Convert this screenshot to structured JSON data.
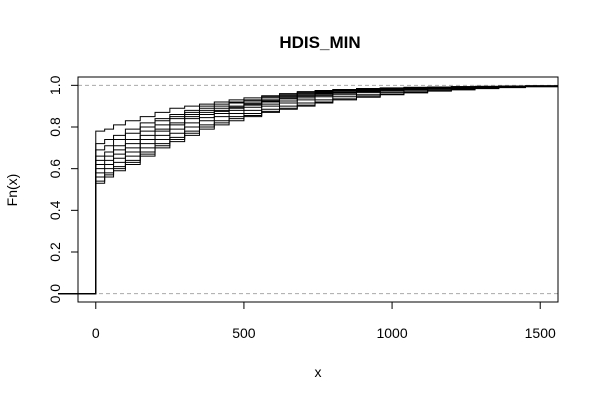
{
  "chart_data": {
    "type": "line",
    "subtype": "ecdf-step",
    "title": "HDIS_MIN",
    "xlabel": "x",
    "ylabel": "Fn(x)",
    "xlim": [
      -60,
      1560
    ],
    "ylim": [
      -0.04,
      1.04
    ],
    "xticks": [
      0,
      500,
      1000,
      1500
    ],
    "xtick_labels": [
      "0",
      "500",
      "1000",
      "1500"
    ],
    "yticks": [
      0.0,
      0.2,
      0.4,
      0.6,
      0.8,
      1.0
    ],
    "ytick_labels": [
      "0.0",
      "0.2",
      "0.4",
      "0.6",
      "0.8",
      "1.0"
    ],
    "reference_lines": [
      0,
      1
    ],
    "reference_line_style": "dashed grey",
    "grid": false,
    "legend": "none",
    "colors": {
      "line": "#000000",
      "reference": "#aaaaaa"
    },
    "series": [
      {
        "x": [
          0,
          30,
          60,
          100,
          150,
          200,
          250,
          300,
          350,
          400,
          450,
          500,
          560,
          620,
          680,
          740,
          800,
          880,
          960,
          1040,
          1120,
          1200,
          1280,
          1360,
          1450,
          1560
        ],
        "y": [
          0.78,
          0.79,
          0.81,
          0.83,
          0.85,
          0.87,
          0.89,
          0.9,
          0.91,
          0.92,
          0.93,
          0.94,
          0.95,
          0.96,
          0.97,
          0.975,
          0.98,
          0.985,
          0.988,
          0.99,
          0.992,
          0.994,
          0.995,
          0.996,
          0.998,
          0.999
        ]
      },
      {
        "x": [
          0,
          30,
          60,
          100,
          150,
          200,
          250,
          300,
          350,
          400,
          450,
          500,
          560,
          620,
          680,
          740,
          800,
          880,
          960,
          1040,
          1120,
          1200,
          1280,
          1360,
          1450,
          1560
        ],
        "y": [
          0.72,
          0.74,
          0.76,
          0.79,
          0.82,
          0.84,
          0.86,
          0.88,
          0.9,
          0.91,
          0.92,
          0.93,
          0.945,
          0.955,
          0.965,
          0.972,
          0.978,
          0.983,
          0.987,
          0.99,
          0.992,
          0.994,
          0.995,
          0.996,
          0.998,
          0.999
        ]
      },
      {
        "x": [
          0,
          30,
          60,
          100,
          150,
          200,
          250,
          300,
          350,
          400,
          450,
          500,
          560,
          620,
          680,
          740,
          800,
          880,
          960,
          1040,
          1120,
          1200,
          1280,
          1360,
          1450,
          1560
        ],
        "y": [
          0.69,
          0.71,
          0.74,
          0.77,
          0.8,
          0.83,
          0.85,
          0.87,
          0.89,
          0.9,
          0.915,
          0.925,
          0.94,
          0.95,
          0.96,
          0.968,
          0.975,
          0.98,
          0.985,
          0.988,
          0.99,
          0.992,
          0.994,
          0.995,
          0.997,
          0.998
        ]
      },
      {
        "x": [
          0,
          30,
          60,
          100,
          150,
          200,
          250,
          300,
          350,
          400,
          450,
          500,
          560,
          620,
          680,
          740,
          800,
          880,
          960,
          1040,
          1120,
          1200,
          1280,
          1360,
          1450,
          1560
        ],
        "y": [
          0.66,
          0.68,
          0.71,
          0.74,
          0.78,
          0.81,
          0.84,
          0.86,
          0.88,
          0.89,
          0.9,
          0.915,
          0.93,
          0.945,
          0.955,
          0.963,
          0.97,
          0.977,
          0.982,
          0.986,
          0.989,
          0.991,
          0.993,
          0.995,
          0.997,
          0.998
        ]
      },
      {
        "x": [
          0,
          30,
          60,
          100,
          150,
          200,
          250,
          300,
          350,
          400,
          450,
          500,
          560,
          620,
          680,
          740,
          800,
          880,
          960,
          1040,
          1120,
          1200,
          1280,
          1360,
          1450,
          1560
        ],
        "y": [
          0.64,
          0.66,
          0.69,
          0.72,
          0.76,
          0.79,
          0.82,
          0.85,
          0.87,
          0.88,
          0.895,
          0.91,
          0.925,
          0.94,
          0.95,
          0.96,
          0.967,
          0.974,
          0.98,
          0.985,
          0.988,
          0.991,
          0.993,
          0.995,
          0.997,
          0.998
        ]
      },
      {
        "x": [
          0,
          30,
          60,
          100,
          150,
          200,
          250,
          300,
          350,
          400,
          450,
          500,
          560,
          620,
          680,
          740,
          800,
          880,
          960,
          1040,
          1120,
          1200,
          1280,
          1360,
          1450,
          1560
        ],
        "y": [
          0.62,
          0.64,
          0.67,
          0.7,
          0.74,
          0.78,
          0.81,
          0.84,
          0.86,
          0.875,
          0.89,
          0.905,
          0.92,
          0.935,
          0.947,
          0.957,
          0.965,
          0.972,
          0.978,
          0.983,
          0.987,
          0.99,
          0.992,
          0.994,
          0.996,
          0.998
        ]
      },
      {
        "x": [
          0,
          30,
          60,
          100,
          150,
          200,
          250,
          300,
          350,
          400,
          450,
          500,
          560,
          620,
          680,
          740,
          800,
          880,
          960,
          1040,
          1120,
          1200,
          1280,
          1360,
          1450,
          1560
        ],
        "y": [
          0.6,
          0.62,
          0.65,
          0.68,
          0.72,
          0.76,
          0.79,
          0.82,
          0.845,
          0.865,
          0.88,
          0.895,
          0.91,
          0.925,
          0.94,
          0.952,
          0.962,
          0.97,
          0.976,
          0.981,
          0.986,
          0.989,
          0.992,
          0.994,
          0.996,
          0.998
        ]
      },
      {
        "x": [
          0,
          30,
          60,
          100,
          150,
          200,
          250,
          300,
          350,
          400,
          450,
          500,
          560,
          620,
          680,
          740,
          800,
          880,
          960,
          1040,
          1120,
          1200,
          1280,
          1360,
          1450,
          1560
        ],
        "y": [
          0.58,
          0.6,
          0.63,
          0.66,
          0.7,
          0.74,
          0.77,
          0.8,
          0.83,
          0.85,
          0.865,
          0.88,
          0.9,
          0.915,
          0.93,
          0.945,
          0.955,
          0.965,
          0.972,
          0.978,
          0.983,
          0.987,
          0.99,
          0.993,
          0.996,
          0.998
        ]
      },
      {
        "x": [
          0,
          30,
          60,
          100,
          150,
          200,
          250,
          300,
          350,
          400,
          450,
          500,
          560,
          620,
          680,
          740,
          800,
          880,
          960,
          1040,
          1120,
          1200,
          1280,
          1360,
          1450,
          1560
        ],
        "y": [
          0.56,
          0.58,
          0.61,
          0.64,
          0.68,
          0.72,
          0.75,
          0.78,
          0.81,
          0.83,
          0.85,
          0.865,
          0.885,
          0.9,
          0.915,
          0.93,
          0.945,
          0.955,
          0.965,
          0.972,
          0.978,
          0.983,
          0.988,
          0.992,
          0.995,
          0.998
        ]
      },
      {
        "x": [
          0,
          30,
          60,
          100,
          150,
          200,
          250,
          300,
          350,
          400,
          450,
          500,
          560,
          620,
          680,
          740,
          800,
          880,
          960,
          1040,
          1120,
          1200,
          1280,
          1360,
          1450,
          1560
        ],
        "y": [
          0.54,
          0.57,
          0.6,
          0.63,
          0.67,
          0.71,
          0.74,
          0.77,
          0.8,
          0.82,
          0.84,
          0.855,
          0.875,
          0.89,
          0.905,
          0.92,
          0.935,
          0.948,
          0.958,
          0.966,
          0.974,
          0.98,
          0.985,
          0.99,
          0.994,
          0.997
        ]
      },
      {
        "x": [
          0,
          30,
          60,
          100,
          150,
          200,
          250,
          300,
          350,
          400,
          450,
          500,
          560,
          620,
          680,
          740,
          800,
          880,
          960,
          1040,
          1120,
          1200,
          1280,
          1360,
          1450,
          1560
        ],
        "y": [
          0.53,
          0.56,
          0.59,
          0.62,
          0.66,
          0.7,
          0.73,
          0.76,
          0.79,
          0.81,
          0.83,
          0.85,
          0.87,
          0.885,
          0.9,
          0.915,
          0.93,
          0.943,
          0.955,
          0.964,
          0.972,
          0.978,
          0.984,
          0.989,
          0.993,
          0.997
        ]
      }
    ]
  }
}
